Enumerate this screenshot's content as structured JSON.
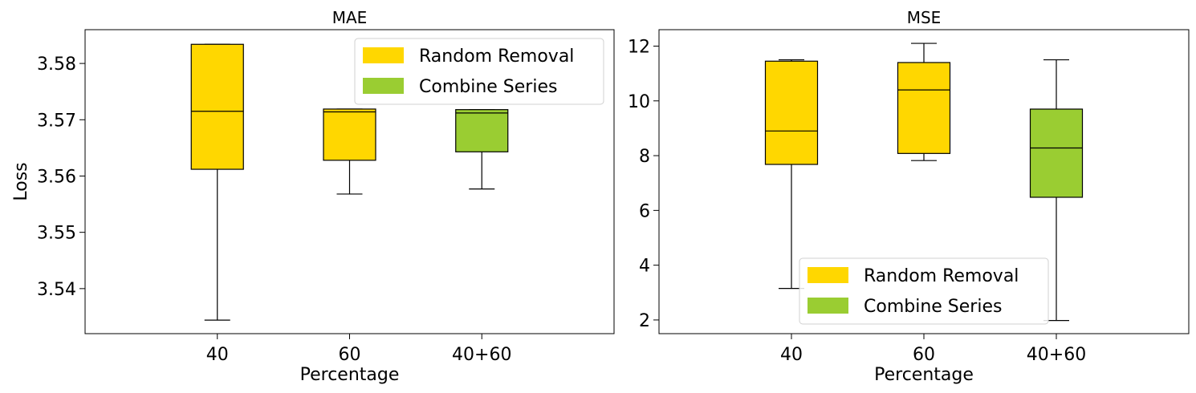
{
  "colors": {
    "random_removal": "#FFD700",
    "combine_series": "#9ACD32",
    "edge": "#000000"
  },
  "chart_data": [
    {
      "type": "box",
      "title": "MAE",
      "xlabel": "Percentage",
      "ylabel": "Loss",
      "categories": [
        "40",
        "60",
        "40+60"
      ],
      "ylim": [
        3.532,
        3.586
      ],
      "yticks": [
        3.54,
        3.55,
        3.56,
        3.57,
        3.58
      ],
      "ytick_labels": [
        "3.54",
        "3.55",
        "3.56",
        "3.57",
        "3.58"
      ],
      "legend": {
        "placement": "upper-right",
        "entries": [
          "Random Removal",
          "Combine Series"
        ]
      },
      "boxes": [
        {
          "category": "40",
          "series": "Random Removal",
          "whislo": 3.5344,
          "q1": 3.5612,
          "median": 3.5715,
          "q3": 3.5834,
          "whishi": 3.5834
        },
        {
          "category": "60",
          "series": "Random Removal",
          "whislo": 3.5568,
          "q1": 3.5628,
          "median": 3.5714,
          "q3": 3.5719,
          "whishi": 3.5719
        },
        {
          "category": "40+60",
          "series": "Combine Series",
          "whislo": 3.5577,
          "q1": 3.5643,
          "median": 3.5712,
          "q3": 3.5718,
          "whishi": 3.5718
        }
      ]
    },
    {
      "type": "box",
      "title": "MSE",
      "xlabel": "Percentage",
      "ylabel": "",
      "categories": [
        "40",
        "60",
        "40+60"
      ],
      "ylim": [
        1.5,
        12.6
      ],
      "yticks": [
        2,
        4,
        6,
        8,
        10,
        12
      ],
      "ytick_labels": [
        "2",
        "4",
        "6",
        "8",
        "10",
        "12"
      ],
      "legend": {
        "placement": "lower-center",
        "entries": [
          "Random Removal",
          "Combine Series"
        ]
      },
      "boxes": [
        {
          "category": "40",
          "series": "Random Removal",
          "whislo": 3.15,
          "q1": 7.68,
          "median": 8.9,
          "q3": 11.45,
          "whishi": 11.5
        },
        {
          "category": "60",
          "series": "Random Removal",
          "whislo": 7.82,
          "q1": 8.08,
          "median": 10.4,
          "q3": 11.4,
          "whishi": 12.1
        },
        {
          "category": "40+60",
          "series": "Combine Series",
          "whislo": 1.98,
          "q1": 6.48,
          "median": 8.28,
          "q3": 9.7,
          "whishi": 11.5
        }
      ]
    }
  ]
}
